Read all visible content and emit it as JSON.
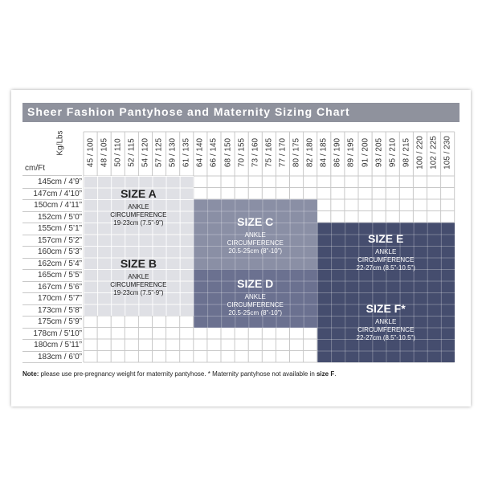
{
  "title": "Sheer Fashion Pantyhose and Maternity Sizing Chart",
  "corner_label": "cm/Ft",
  "kg_label": "Kg/Lbs",
  "weight_columns": [
    "45 / 100",
    "48 / 105",
    "50 / 110",
    "52 / 115",
    "54 / 120",
    "57 / 125",
    "59 / 130",
    "61 / 135",
    "64 / 140",
    "66 / 145",
    "68 / 150",
    "70 / 155",
    "73 / 160",
    "75 / 165",
    "77 / 170",
    "80 / 175",
    "82 / 180",
    "84 / 185",
    "86 / 190",
    "89 / 195",
    "91 / 200",
    "93 / 205",
    "95 / 210",
    "98 / 215",
    "100 / 220",
    "102 / 225",
    "105 / 230"
  ],
  "height_rows": [
    "145cm / 4’9”",
    "147cm / 4’10”",
    "150cm / 4’11”",
    "152cm / 5’0”",
    "155cm / 5’1”",
    "157cm / 5’2”",
    "160cm / 5’3”",
    "162cm / 5’4”",
    "165cm / 5’5”",
    "167cm / 5’6”",
    "170cm / 5’7”",
    "173cm / 5’8”",
    "175cm / 5’9”",
    "178cm / 5’10”",
    "180cm / 5’11”",
    "183cm / 6’0”"
  ],
  "colors": {
    "title_bar": "#8f929d",
    "size_a": "#dfe0e5",
    "size_b": "#dfe0e5",
    "size_c": "#8a8fa5",
    "size_d": "#6b7190",
    "size_e": "#454d6e",
    "size_f": "#454d6e"
  },
  "zones": [
    {
      "key": "A",
      "title": "SIZE A",
      "ankle": "ANKLE",
      "circ": "CIRCUMFERENCE",
      "range": "19-23cm (7.5”-9”)",
      "dark": false
    },
    {
      "key": "B",
      "title": "SIZE B",
      "ankle": "ANKLE",
      "circ": "CIRCUMFERENCE",
      "range": "19-23cm (7.5”-9”)",
      "dark": false
    },
    {
      "key": "C",
      "title": "SIZE C",
      "ankle": "ANKLE",
      "circ": "CIRCUMFERENCE",
      "range": "20.5-25cm (8”-10”)",
      "dark": true
    },
    {
      "key": "D",
      "title": "SIZE D",
      "ankle": "ANKLE",
      "circ": "CIRCUMFERENCE",
      "range": "20.5-25cm (8”-10”)",
      "dark": true
    },
    {
      "key": "E",
      "title": "SIZE E",
      "ankle": "ANKLE",
      "circ": "CIRCUMFERENCE",
      "range": "22-27cm (8.5”-10.5”)",
      "dark": true
    },
    {
      "key": "F",
      "title": "SIZE F*",
      "ankle": "ANKLE",
      "circ": "CIRCUMFERENCE",
      "range": "22-27cm (8.5”-10.5”)",
      "dark": true
    }
  ],
  "note": {
    "label": "Note:",
    "text": " please use pre-pregnancy weight for maternity pantyhose. * Maternity pantyhose not available in ",
    "emph": "size F",
    "end": "."
  }
}
